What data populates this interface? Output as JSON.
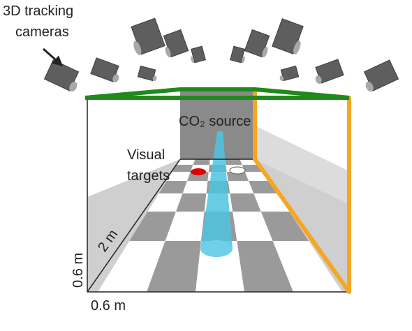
{
  "labels": {
    "cameras": [
      "3D tracking",
      "cameras"
    ],
    "co2_source": "CO₂ source",
    "visual_targets": [
      "Visual",
      "targets"
    ],
    "length": "2 m",
    "height": "0.6 m",
    "width": "0.6 m"
  }
}
